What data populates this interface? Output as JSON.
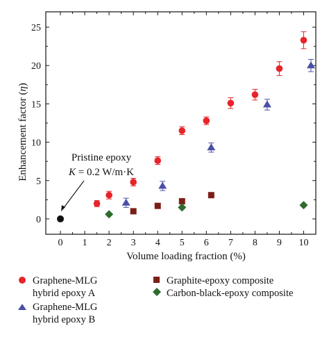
{
  "chart_data": {
    "type": "scatter",
    "xlabel": "Volume loading fraction (%)",
    "ylabel_prefix": "Enhancement factor (",
    "ylabel_symbol": "η",
    "ylabel_suffix": ")",
    "xlim": [
      -0.6,
      10.5
    ],
    "ylim": [
      -2.0,
      27.0
    ],
    "xticks": [
      0,
      1,
      2,
      3,
      4,
      5,
      6,
      7,
      8,
      9,
      10
    ],
    "yticks": [
      0,
      5,
      10,
      15,
      20,
      25
    ],
    "legend_placement": "bottom",
    "annotation": {
      "line1": "Pristine epoxy",
      "line2_prefix": "K",
      "line2_rest": " = 0.2 W/m·K",
      "point": {
        "x": 0,
        "y": 0,
        "color": "#111111"
      }
    },
    "series": [
      {
        "key": "A",
        "name_line1": "Graphene-MLG",
        "name_line2": "hybrid epoxy A",
        "marker": "circle",
        "color": "#e8232a",
        "points": [
          {
            "x": 1.5,
            "y": 2.0,
            "err": 0.4
          },
          {
            "x": 2.0,
            "y": 3.1,
            "err": 0.5
          },
          {
            "x": 3.0,
            "y": 4.8,
            "err": 0.5
          },
          {
            "x": 4.0,
            "y": 7.6,
            "err": 0.5
          },
          {
            "x": 5.0,
            "y": 11.5,
            "err": 0.5
          },
          {
            "x": 6.0,
            "y": 12.8,
            "err": 0.5
          },
          {
            "x": 7.0,
            "y": 15.1,
            "err": 0.7
          },
          {
            "x": 8.0,
            "y": 16.2,
            "err": 0.7
          },
          {
            "x": 9.0,
            "y": 19.6,
            "err": 0.9
          },
          {
            "x": 10.0,
            "y": 23.3,
            "err": 1.1
          }
        ]
      },
      {
        "key": "B",
        "name_line1": "Graphene-MLG",
        "name_line2": "hybrid epoxy B",
        "marker": "triangle",
        "color": "#4b4fa6",
        "points": [
          {
            "x": 2.7,
            "y": 2.1,
            "err": 0.6
          },
          {
            "x": 4.2,
            "y": 4.3,
            "err": 0.6
          },
          {
            "x": 6.2,
            "y": 9.3,
            "err": 0.6
          },
          {
            "x": 8.5,
            "y": 14.9,
            "err": 0.7
          },
          {
            "x": 10.3,
            "y": 20.0,
            "err": 0.8
          }
        ]
      },
      {
        "key": "C",
        "name_line1": "Graphite-epoxy composite",
        "name_line2": "",
        "marker": "square",
        "color": "#7a1f17",
        "points": [
          {
            "x": 3.0,
            "y": 1.0
          },
          {
            "x": 4.0,
            "y": 1.7
          },
          {
            "x": 5.0,
            "y": 2.3
          },
          {
            "x": 6.2,
            "y": 3.1
          }
        ]
      },
      {
        "key": "D",
        "name_line1": "Carbon-black-epoxy composite",
        "name_line2": "",
        "marker": "diamond",
        "color": "#2e6b2e",
        "points": [
          {
            "x": 2.0,
            "y": 0.6
          },
          {
            "x": 5.0,
            "y": 1.5
          },
          {
            "x": 10.0,
            "y": 1.8
          }
        ]
      }
    ]
  }
}
